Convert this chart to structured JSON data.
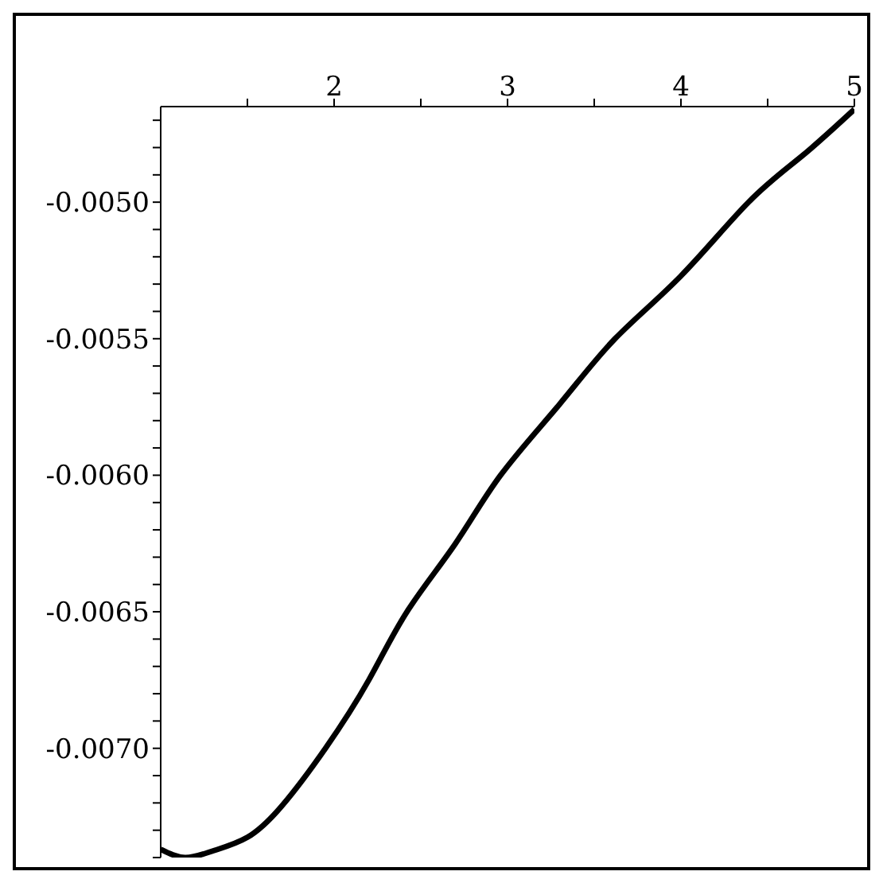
{
  "chart_data": {
    "type": "line",
    "x": [
      1,
      1.14,
      1.3,
      1.5,
      1.7,
      1.95,
      2.2,
      2.42,
      2.7,
      2.96,
      3.3,
      3.62,
      4,
      4.39,
      4.7,
      5
    ],
    "series": [
      {
        "color": "#000000",
        "values": [
          -0.00737,
          -0.0074,
          -0.007376,
          -0.007326,
          -0.00721,
          -0.007,
          -0.00675,
          -0.0065,
          -0.00625,
          -0.006,
          -0.00574,
          -0.0055,
          -0.00527,
          -0.005,
          -0.00483,
          -0.00466
        ]
      }
    ],
    "xlim": [
      1,
      5
    ],
    "xticks": [
      {
        "value": 1.5,
        "label": null
      },
      2,
      {
        "value": 2.5,
        "label": null
      },
      3,
      {
        "value": 3.5,
        "label": null
      },
      4,
      {
        "value": 4.5,
        "label": null
      },
      5
    ],
    "ylim": [
      -0.0074,
      -0.00465
    ],
    "yticks": [
      {
        "value": -0.0074,
        "label": null
      },
      {
        "value": -0.0073,
        "label": null
      },
      {
        "value": -0.0072,
        "label": null
      },
      {
        "value": -0.0071,
        "label": null
      },
      {
        "value": -0.007,
        "label": "-0.0070"
      },
      {
        "value": -0.0069,
        "label": null
      },
      {
        "value": -0.0068,
        "label": null
      },
      {
        "value": -0.0067,
        "label": null
      },
      {
        "value": -0.0066,
        "label": null
      },
      {
        "value": -0.0065,
        "label": "-0.0065"
      },
      {
        "value": -0.0064,
        "label": null
      },
      {
        "value": -0.0063,
        "label": null
      },
      {
        "value": -0.0062,
        "label": null
      },
      {
        "value": -0.0061,
        "label": null
      },
      {
        "value": -0.006,
        "label": "-0.0060"
      },
      {
        "value": -0.0059,
        "label": null
      },
      {
        "value": -0.0058,
        "label": null
      },
      {
        "value": -0.0057,
        "label": null
      },
      {
        "value": -0.0056,
        "label": null
      },
      {
        "value": -0.0055,
        "label": "-0.0055"
      },
      {
        "value": -0.0054,
        "label": null
      },
      {
        "value": -0.0053,
        "label": null
      },
      {
        "value": -0.0052,
        "label": null
      },
      {
        "value": -0.0051,
        "label": null
      },
      {
        "value": -0.005,
        "label": "-0.0050"
      },
      {
        "value": -0.0049,
        "label": null
      },
      {
        "value": -0.0048,
        "label": null
      },
      {
        "value": -0.0047,
        "label": null
      }
    ],
    "grid": false,
    "legend": false,
    "marker": "none",
    "line_style": "solid"
  }
}
